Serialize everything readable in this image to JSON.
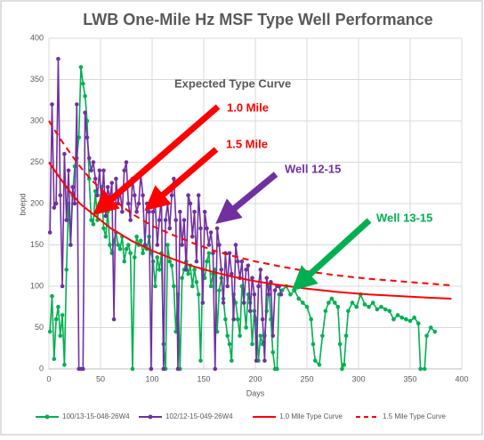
{
  "chart_data": {
    "type": "line",
    "title": "LWB One-Mile Hz MSF Type Well Performance",
    "x_label": "Days",
    "y_label": "boepd",
    "annotations": [
      "Expected Type Curve",
      "1.0 Mile",
      "1.5 Mile",
      "Well 12-15",
      "Well 13-15"
    ],
    "xlim": [
      0,
      400
    ],
    "xticks": [
      0,
      50,
      100,
      150,
      200,
      250,
      300,
      350,
      400
    ],
    "ylim": [
      0,
      400
    ],
    "yticks": [
      0,
      50,
      100,
      150,
      200,
      250,
      300,
      350,
      400
    ],
    "grid": true,
    "legend": "bottom",
    "series": [
      {
        "name": "100/13-15-048-26W4",
        "color": "#00b050",
        "marker": true,
        "dash": false,
        "x": [
          1,
          3,
          5,
          7,
          9,
          11,
          13,
          15,
          17,
          19,
          21,
          23,
          25,
          27,
          29,
          31,
          33,
          35,
          37,
          39,
          41,
          43,
          45,
          47,
          49,
          51,
          53,
          55,
          57,
          59,
          61,
          63,
          65,
          67,
          69,
          71,
          73,
          75,
          77,
          79,
          81,
          83,
          85,
          87,
          89,
          91,
          93,
          95,
          97,
          99,
          101,
          103,
          105,
          107,
          109,
          111,
          113,
          115,
          117,
          119,
          121,
          123,
          125,
          127,
          129,
          131,
          133,
          135,
          137,
          139,
          141,
          143,
          145,
          147,
          149,
          151,
          153,
          155,
          157,
          159,
          161,
          163,
          165,
          167,
          169,
          171,
          173,
          175,
          177,
          179,
          181,
          183,
          185,
          187,
          189,
          191,
          193,
          195,
          197,
          199,
          201,
          203,
          205,
          207,
          209,
          211,
          213,
          215,
          217,
          219,
          221,
          223,
          226,
          230,
          234,
          238,
          242,
          246,
          250,
          254,
          256,
          258,
          262,
          265,
          268,
          271,
          274,
          277,
          280,
          282,
          284,
          286,
          288,
          290,
          294,
          298,
          302,
          306,
          310,
          314,
          318,
          322,
          326,
          330,
          334,
          338,
          342,
          346,
          350,
          354,
          358,
          360,
          364,
          366,
          370,
          374
        ],
        "values": [
          45,
          88,
          12,
          60,
          75,
          40,
          65,
          5,
          120,
          200,
          150,
          210,
          245,
          255,
          280,
          365,
          345,
          330,
          300,
          230,
          180,
          175,
          215,
          180,
          200,
          220,
          170,
          160,
          190,
          150,
          140,
          155,
          165,
          150,
          145,
          160,
          130,
          145,
          150,
          140,
          0,
          135,
          160,
          150,
          155,
          140,
          150,
          145,
          160,
          140,
          130,
          100,
          135,
          120,
          140,
          30,
          0,
          150,
          130,
          125,
          100,
          45,
          90,
          0,
          110,
          120,
          130,
          115,
          125,
          100,
          120,
          105,
          90,
          10,
          120,
          110,
          130,
          140,
          100,
          115,
          120,
          45,
          95,
          110,
          85,
          60,
          40,
          30,
          10,
          90,
          80,
          60,
          40,
          100,
          80,
          50,
          90,
          80,
          30,
          70,
          60,
          10,
          40,
          30,
          40,
          70,
          100,
          60,
          20,
          0,
          0,
          90,
          95,
          100,
          90,
          95,
          85,
          80,
          75,
          60,
          30,
          10,
          5,
          40,
          70,
          80,
          85,
          80,
          75,
          30,
          0,
          5,
          40,
          70,
          80,
          75,
          90,
          78,
          75,
          80,
          72,
          75,
          72,
          70,
          60,
          65,
          62,
          60,
          58,
          62,
          55,
          0,
          0,
          40,
          50,
          45
        ]
      },
      {
        "name": "102/12-15-049-26W4",
        "color": "#7030a0",
        "marker": true,
        "dash": false,
        "x": [
          1,
          3,
          5,
          7,
          9,
          11,
          13,
          15,
          17,
          19,
          21,
          23,
          25,
          27,
          29,
          31,
          33,
          35,
          37,
          39,
          41,
          43,
          45,
          47,
          49,
          51,
          53,
          55,
          57,
          59,
          61,
          63,
          65,
          67,
          69,
          71,
          73,
          75,
          77,
          79,
          81,
          83,
          85,
          87,
          89,
          91,
          93,
          95,
          97,
          99,
          101,
          103,
          105,
          107,
          109,
          111,
          113,
          115,
          117,
          119,
          121,
          123,
          125,
          127,
          129,
          131,
          133,
          135,
          137,
          139,
          141,
          143,
          145,
          147,
          149,
          151,
          153,
          155,
          157,
          159,
          161,
          163,
          165,
          167,
          169,
          171,
          173,
          175,
          177,
          179,
          181,
          183,
          185,
          187,
          189,
          191,
          193,
          195,
          197,
          199,
          201,
          203,
          205,
          207,
          209,
          211,
          213,
          215,
          217,
          219,
          221,
          223,
          225
        ],
        "values": [
          165,
          320,
          195,
          200,
          375,
          210,
          100,
          260,
          180,
          240,
          150,
          220,
          200,
          320,
          0,
          0,
          0,
          310,
          280,
          255,
          240,
          250,
          230,
          210,
          240,
          200,
          240,
          185,
          220,
          205,
          225,
          60,
          230,
          200,
          215,
          190,
          240,
          250,
          200,
          180,
          230,
          210,
          190,
          200,
          235,
          210,
          150,
          200,
          190,
          0,
          190,
          200,
          150,
          180,
          210,
          0,
          180,
          200,
          170,
          210,
          230,
          180,
          0,
          190,
          150,
          180,
          120,
          210,
          200,
          160,
          190,
          130,
          210,
          170,
          80,
          190,
          170,
          150,
          165,
          140,
          0,
          170,
          150,
          120,
          80,
          140,
          100,
          140,
          115,
          60,
          150,
          130,
          110,
          130,
          80,
          120,
          125,
          70,
          110,
          90,
          10,
          100,
          120,
          60,
          10,
          110,
          90,
          105,
          40,
          95,
          100,
          100,
          90
        ]
      },
      {
        "name": "1.0 Mile Type Curve",
        "color": "#ff0000",
        "marker": false,
        "dash": false,
        "x": [
          0,
          10,
          20,
          30,
          40,
          50,
          60,
          80,
          100,
          120,
          140,
          160,
          180,
          200,
          220,
          250,
          280,
          310,
          340,
          370,
          390
        ],
        "values": [
          250,
          232,
          215,
          200,
          190,
          180,
          170,
          155,
          143,
          133,
          124,
          117,
          111,
          106,
          102,
          97,
          93,
          90,
          88,
          86,
          85
        ]
      },
      {
        "name": "1.5 Mile Type Curve",
        "color": "#ff0000",
        "marker": false,
        "dash": true,
        "x": [
          0,
          10,
          20,
          30,
          40,
          50,
          60,
          80,
          100,
          120,
          140,
          160,
          180,
          200,
          220,
          250,
          280,
          310,
          340,
          370,
          390
        ],
        "values": [
          300,
          280,
          262,
          245,
          230,
          218,
          207,
          188,
          173,
          162,
          152,
          143,
          136,
          130,
          125,
          118,
          113,
          109,
          106,
          103,
          101
        ]
      }
    ]
  }
}
